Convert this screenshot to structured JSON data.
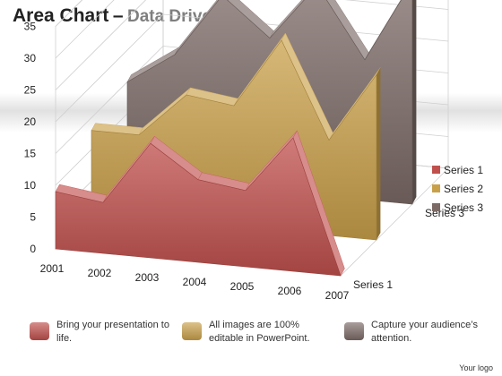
{
  "header": {
    "title": "Area Chart",
    "separator": "–",
    "subtitle": "Data Driven"
  },
  "chart_data": {
    "type": "area",
    "three_d": true,
    "categories": [
      "2001",
      "2002",
      "2003",
      "2004",
      "2005",
      "2006",
      "2007"
    ],
    "series": [
      {
        "name": "Series 1",
        "values": [
          9,
          8,
          18,
          13,
          12,
          21,
          0
        ],
        "color": "#C0504D"
      },
      {
        "name": "Series 2",
        "values": [
          13,
          13,
          20,
          19,
          30,
          15,
          26
        ],
        "color": "#C9A04A"
      },
      {
        "name": "Series 3",
        "values": [
          15,
          20,
          30,
          24,
          33,
          22,
          35
        ],
        "color": "#7B6A66"
      }
    ],
    "y_ticks": [
      "0",
      "5",
      "10",
      "15",
      "20",
      "25",
      "30",
      "35"
    ],
    "depth_labels": [
      "Series 1",
      "Series 3"
    ],
    "ylim": [
      0,
      35
    ],
    "grid": true,
    "legend": "right"
  },
  "legend": {
    "items": [
      {
        "label": "Series 1",
        "color": "#C0504D"
      },
      {
        "label": "Series 2",
        "color": "#C9A04A"
      },
      {
        "label": "Series 3",
        "color": "#7B6A66"
      }
    ]
  },
  "footer": {
    "items": [
      {
        "text": "Bring your presentation to life.",
        "color": "#C0504D"
      },
      {
        "text": "All images are 100% editable in PowerPoint.",
        "color": "#C9A04A"
      },
      {
        "text": "Capture your audience’s attention.",
        "color": "#7B6A66"
      }
    ],
    "logo": "Your logo"
  }
}
